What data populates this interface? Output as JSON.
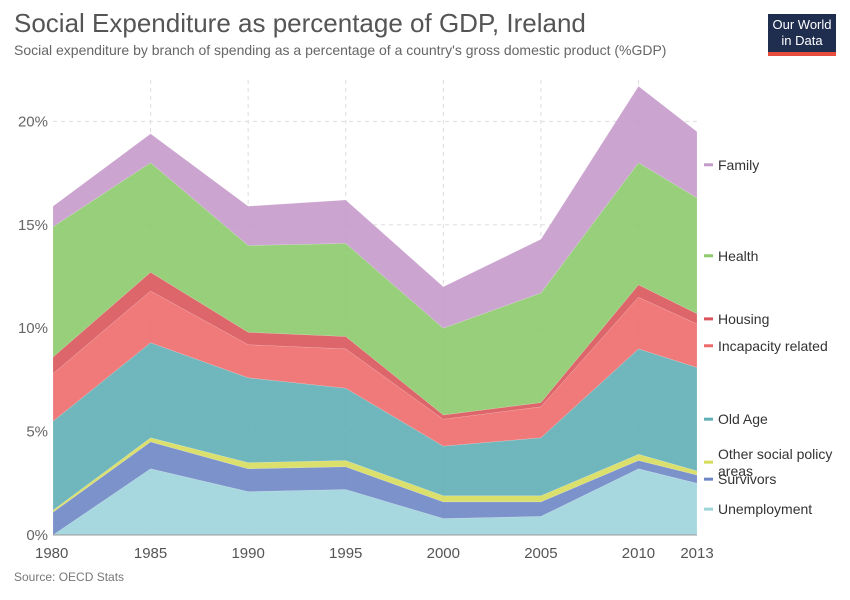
{
  "header": {
    "title": "Social Expenditure as percentage of GDP, Ireland",
    "subtitle": "Social expenditure by branch of spending as a percentage of a country's gross domestic product (%GDP)",
    "logo_line1": "Our World",
    "logo_line2": "in Data"
  },
  "footer": {
    "source": "Source: OECD Stats"
  },
  "chart_data": {
    "type": "area",
    "stacked": true,
    "x": [
      1980,
      1985,
      1990,
      1995,
      2000,
      2005,
      2010,
      2013
    ],
    "x_tick_labels": [
      "1980",
      "1985",
      "1990",
      "1995",
      "2000",
      "2005",
      "2010",
      "2013"
    ],
    "y_tick_values": [
      0,
      5,
      10,
      15,
      20
    ],
    "y_tick_labels": [
      "0%",
      "5%",
      "10%",
      "15%",
      "20%"
    ],
    "ylim": [
      0,
      22
    ],
    "grid": true,
    "legend_position": "right",
    "series": [
      {
        "name": "Unemployment",
        "color": "#9dd4db",
        "values": [
          0.0,
          3.2,
          2.1,
          2.2,
          0.8,
          0.9,
          3.2,
          2.5
        ]
      },
      {
        "name": "Survivors",
        "color": "#6d86c5",
        "values": [
          1.1,
          1.3,
          1.1,
          1.1,
          0.8,
          0.7,
          0.4,
          0.4
        ]
      },
      {
        "name": "Other social policy areas",
        "color": "#d7dc5c",
        "values": [
          0.1,
          0.2,
          0.3,
          0.3,
          0.3,
          0.3,
          0.3,
          0.2
        ]
      },
      {
        "name": "Old Age",
        "color": "#5fafb6",
        "values": [
          4.3,
          4.6,
          4.1,
          3.5,
          2.4,
          2.8,
          5.1,
          5.0
        ]
      },
      {
        "name": "Incapacity related",
        "color": "#ee6b6b",
        "values": [
          2.3,
          2.5,
          1.6,
          1.9,
          1.3,
          1.5,
          2.5,
          2.1
        ]
      },
      {
        "name": "Housing",
        "color": "#d9555b",
        "values": [
          0.8,
          0.9,
          0.6,
          0.6,
          0.2,
          0.2,
          0.6,
          0.5
        ]
      },
      {
        "name": "Health",
        "color": "#8dca6c",
        "values": [
          6.3,
          5.3,
          4.2,
          4.5,
          4.2,
          5.3,
          5.9,
          5.6
        ]
      },
      {
        "name": "Family",
        "color": "#c59bcb",
        "values": [
          1.0,
          1.4,
          1.9,
          2.1,
          2.0,
          2.6,
          3.7,
          3.2
        ]
      }
    ]
  }
}
